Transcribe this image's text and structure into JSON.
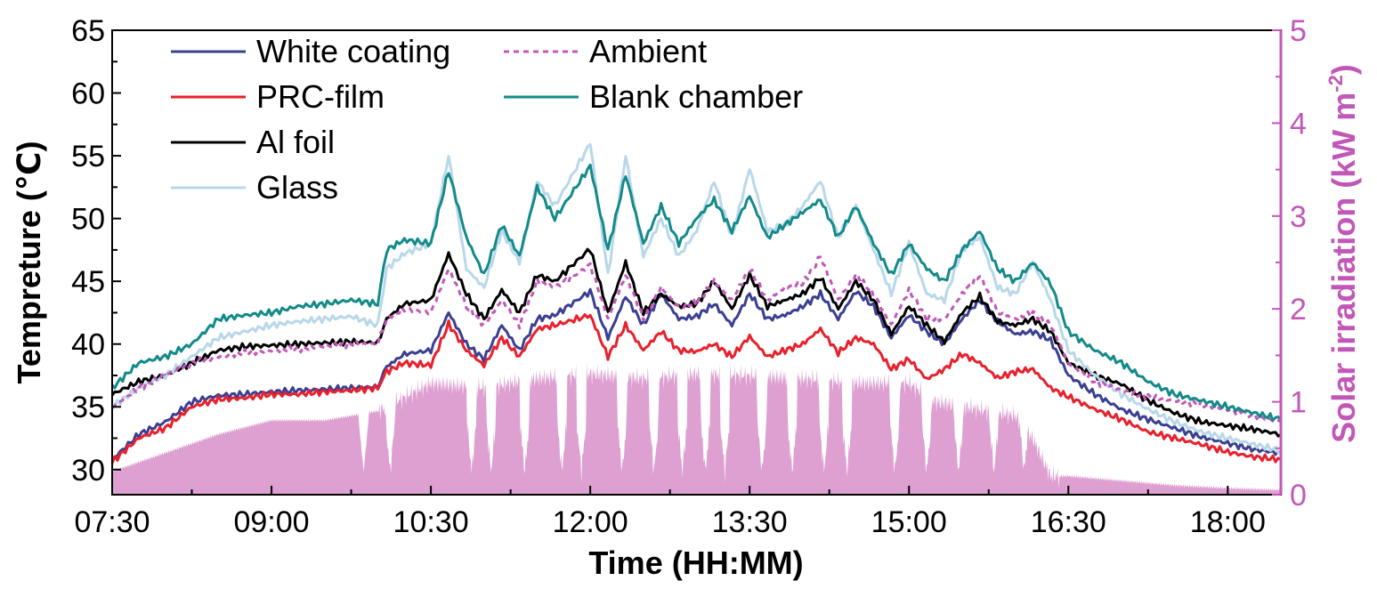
{
  "chart_data": {
    "type": "line",
    "xlabel": "Time (HH:MM)",
    "ylabel": "Tempreture (℃)",
    "ylabel_right": "Solar irradiation (kW m⁻²)",
    "ylabel_right_parts": [
      "Solar irradiation (kW m",
      "-2",
      ")"
    ],
    "xlim": [
      "07:30",
      "18:30"
    ],
    "ylim": [
      28,
      65
    ],
    "ylim_right": [
      0,
      5
    ],
    "x_ticks": [
      "07:30",
      "09:00",
      "10:30",
      "12:00",
      "13:30",
      "15:00",
      "16:30",
      "18:00"
    ],
    "y_ticks": [
      "30",
      "35",
      "40",
      "45",
      "50",
      "55",
      "60",
      "65"
    ],
    "y_ticks_right": [
      "0",
      "1",
      "2",
      "3",
      "4",
      "5"
    ],
    "legend_position": "top-left",
    "grid": false,
    "x_time": [
      "07:30",
      "07:45",
      "08:00",
      "08:15",
      "08:30",
      "08:45",
      "09:00",
      "09:15",
      "09:30",
      "09:45",
      "10:00",
      "10:05",
      "10:15",
      "10:30",
      "10:40",
      "10:50",
      "11:00",
      "11:10",
      "11:20",
      "11:30",
      "11:40",
      "12:00",
      "12:10",
      "12:20",
      "12:30",
      "12:40",
      "12:50",
      "13:00",
      "13:10",
      "13:20",
      "13:30",
      "13:40",
      "13:50",
      "14:00",
      "14:10",
      "14:20",
      "14:30",
      "14:40",
      "14:50",
      "15:00",
      "15:10",
      "15:20",
      "15:30",
      "15:40",
      "15:50",
      "16:00",
      "16:10",
      "16:20",
      "16:30",
      "16:45",
      "17:00",
      "17:15",
      "17:30",
      "17:45",
      "18:00",
      "18:15",
      "18:30"
    ],
    "series": [
      {
        "name": "White coating",
        "color": "#3b3f92",
        "dash": "",
        "values": [
          30.8,
          32.8,
          33.8,
          35.4,
          35.9,
          36.0,
          36.2,
          36.3,
          36.4,
          36.5,
          36.6,
          38.2,
          39.2,
          39.5,
          42.5,
          40.0,
          38.8,
          41.5,
          39.5,
          42.0,
          42.3,
          44.2,
          40.5,
          43.8,
          41.5,
          44.0,
          42.0,
          42.2,
          43.2,
          41.5,
          44.0,
          42.0,
          42.3,
          43.0,
          44.0,
          42.0,
          44.2,
          43.0,
          40.5,
          42.3,
          41.0,
          40.0,
          42.0,
          43.5,
          41.8,
          40.8,
          41.0,
          40.3,
          37.5,
          36.0,
          34.8,
          34.0,
          33.3,
          32.6,
          32.1,
          31.6,
          31.3
        ]
      },
      {
        "name": "PRC-film",
        "color": "#e8202c",
        "dash": "",
        "values": [
          30.6,
          32.5,
          33.3,
          35.0,
          35.6,
          35.7,
          36.0,
          36.0,
          36.2,
          36.3,
          36.5,
          37.8,
          38.5,
          38.3,
          41.6,
          39.5,
          38.3,
          40.5,
          39.0,
          41.2,
          41.5,
          42.3,
          39.0,
          41.5,
          39.5,
          41.0,
          39.5,
          39.4,
          40.0,
          39.0,
          40.6,
          39.0,
          39.5,
          40.0,
          41.2,
          39.3,
          40.5,
          40.0,
          38.0,
          38.8,
          37.2,
          38.0,
          39.2,
          38.5,
          37.3,
          37.8,
          38.0,
          36.5,
          35.8,
          34.8,
          34.0,
          33.0,
          32.5,
          32.0,
          31.4,
          31.0,
          30.8
        ]
      },
      {
        "name": "Al foil",
        "color": "#000000",
        "dash": "",
        "values": [
          36.0,
          37.0,
          37.5,
          38.5,
          39.5,
          39.8,
          39.9,
          40.0,
          40.1,
          40.2,
          40.1,
          42.0,
          43.2,
          43.5,
          47.2,
          44.0,
          42.0,
          44.3,
          42.5,
          45.5,
          45.0,
          47.6,
          42.5,
          46.5,
          42.5,
          44.0,
          43.0,
          43.2,
          45.0,
          42.8,
          45.5,
          43.0,
          43.5,
          44.0,
          45.3,
          42.8,
          45.0,
          43.5,
          40.8,
          43.0,
          41.5,
          40.2,
          42.5,
          43.8,
          41.8,
          41.5,
          42.0,
          41.0,
          38.5,
          37.5,
          36.8,
          35.5,
          34.5,
          33.8,
          33.5,
          33.2,
          32.8
        ]
      },
      {
        "name": "Glass",
        "color": "#b8d8ea",
        "dash": "",
        "values": [
          35.0,
          36.5,
          37.5,
          39.0,
          40.5,
          41.0,
          41.5,
          41.8,
          42.0,
          42.2,
          41.5,
          46.0,
          47.2,
          48.0,
          55.0,
          46.0,
          44.5,
          49.0,
          46.5,
          53.0,
          51.0,
          56.0,
          45.5,
          55.0,
          47.0,
          50.0,
          47.0,
          49.0,
          53.0,
          48.5,
          54.0,
          49.0,
          49.5,
          51.0,
          53.0,
          48.5,
          51.0,
          47.5,
          44.0,
          48.0,
          44.0,
          43.5,
          47.5,
          48.5,
          44.5,
          44.0,
          46.5,
          43.5,
          39.5,
          37.5,
          36.0,
          34.8,
          33.8,
          33.0,
          32.5,
          32.0,
          31.5
        ]
      },
      {
        "name": "Ambient",
        "color": "#c158b8",
        "dash": "6,5",
        "values": [
          35.0,
          36.5,
          37.5,
          38.5,
          39.0,
          39.3,
          39.5,
          39.6,
          39.8,
          40.0,
          40.0,
          42.0,
          42.8,
          42.5,
          46.0,
          43.0,
          41.5,
          43.5,
          41.5,
          45.0,
          44.5,
          46.3,
          42.0,
          45.5,
          42.0,
          44.5,
          43.0,
          43.3,
          45.0,
          43.5,
          46.0,
          43.5,
          44.5,
          44.8,
          47.0,
          43.5,
          45.5,
          44.0,
          41.5,
          44.3,
          42.0,
          42.0,
          44.0,
          45.5,
          42.5,
          42.0,
          42.5,
          41.5,
          38.5,
          37.0,
          36.3,
          35.8,
          35.5,
          35.2,
          34.8,
          34.3,
          33.8
        ]
      },
      {
        "name": "Blank chamber",
        "color": "#138a8a",
        "dash": "",
        "values": [
          36.5,
          38.5,
          39.0,
          40.0,
          42.0,
          42.3,
          42.5,
          43.0,
          43.2,
          43.5,
          43.2,
          47.5,
          48.3,
          48.0,
          53.8,
          48.5,
          45.5,
          49.5,
          47.0,
          52.5,
          50.0,
          54.2,
          47.5,
          53.5,
          48.0,
          51.0,
          48.0,
          50.0,
          51.5,
          49.0,
          51.8,
          48.5,
          49.5,
          50.5,
          51.5,
          48.5,
          51.0,
          48.0,
          45.5,
          48.0,
          46.0,
          45.0,
          47.5,
          49.0,
          46.0,
          45.0,
          46.5,
          44.8,
          41.0,
          39.5,
          38.5,
          37.0,
          36.0,
          35.5,
          35.0,
          34.5,
          34.0
        ]
      }
    ],
    "solar_irradiation": {
      "name": "Solar irradiation",
      "color": "#d78fc9",
      "type": "area",
      "x_time": [
        "07:30",
        "08:00",
        "08:30",
        "09:00",
        "09:30",
        "10:00",
        "10:10",
        "10:20",
        "10:30",
        "11:00",
        "11:30",
        "12:00",
        "12:30",
        "13:00",
        "13:30",
        "14:00",
        "14:30",
        "15:00",
        "15:15",
        "15:30",
        "16:00",
        "16:10",
        "16:20",
        "16:30",
        "17:00",
        "17:30",
        "18:00",
        "18:30"
      ],
      "values": [
        0.25,
        0.45,
        0.65,
        0.8,
        0.8,
        0.9,
        1.0,
        1.1,
        1.2,
        1.15,
        1.25,
        1.3,
        1.25,
        1.3,
        1.28,
        1.25,
        1.2,
        1.2,
        1.0,
        0.95,
        0.85,
        0.6,
        0.2,
        0.2,
        0.15,
        0.1,
        0.07,
        0.05
      ],
      "dip_times": [
        "09:52",
        "10:07",
        "10:53",
        "11:04",
        "11:23",
        "11:44",
        "11:55",
        "12:18",
        "12:36",
        "12:52",
        "13:05",
        "13:16",
        "13:37",
        "13:54",
        "14:12",
        "14:25",
        "14:52",
        "15:10",
        "15:28",
        "15:48",
        "16:05"
      ]
    }
  },
  "legend": [
    {
      "label": "White coating",
      "color": "#3b3f92",
      "dash": ""
    },
    {
      "label": "PRC-film",
      "color": "#e8202c",
      "dash": ""
    },
    {
      "label": "Al foil",
      "color": "#000000",
      "dash": ""
    },
    {
      "label": "Glass",
      "color": "#b8d8ea",
      "dash": ""
    },
    {
      "label": "Ambient",
      "color": "#c158b8",
      "dash": "6,5"
    },
    {
      "label": "Blank chamber",
      "color": "#138a8a",
      "dash": ""
    }
  ],
  "colors": {
    "axis": "#000000",
    "right_axis": "#c158b8"
  }
}
